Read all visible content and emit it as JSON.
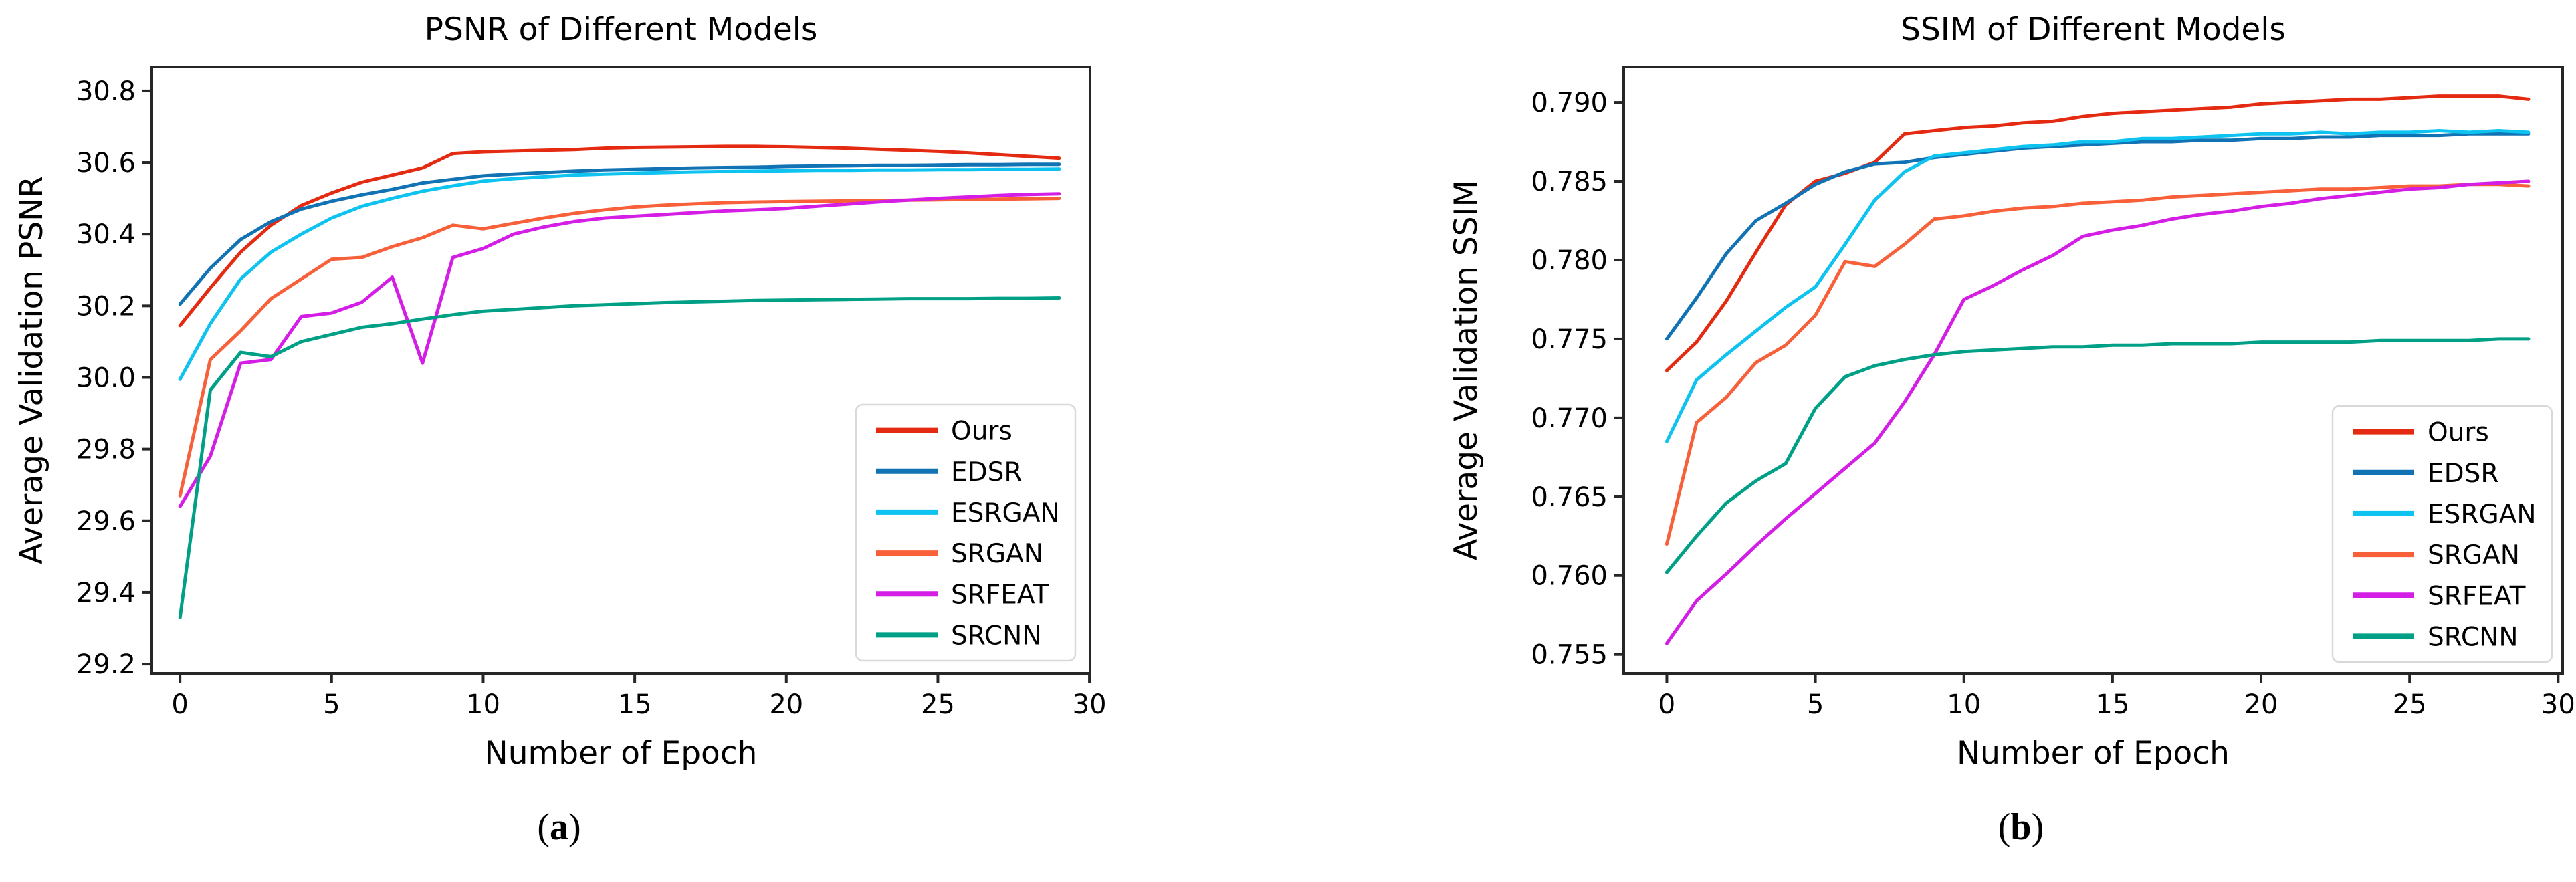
{
  "page": {
    "background": "#ffffff",
    "frame_color": "#262626",
    "text_color": "#000000"
  },
  "panels": [
    {
      "caption": {
        "open": "(",
        "letter": "a",
        "close": ")"
      }
    },
    {
      "caption": {
        "open": "(",
        "letter": "b",
        "close": ")"
      }
    }
  ],
  "chart_data": [
    {
      "id": "psnr",
      "type": "line",
      "title": "PSNR of Different Models",
      "xlabel": "Number of Epoch",
      "ylabel": "Average Validation PSNR",
      "xlim": [
        -0.93,
        30.02
      ],
      "ylim": [
        29.174,
        30.867
      ],
      "grid": false,
      "legend_position": "lower right",
      "legend": [
        "Ours",
        "EDSR",
        "ESRGAN",
        "SRGAN",
        "SRFEAT",
        "SRCNN"
      ],
      "xticks": [
        0,
        5,
        10,
        15,
        20,
        25,
        30
      ],
      "xtick_labels": [
        "0",
        "5",
        "10",
        "15",
        "20",
        "25",
        "30"
      ],
      "yticks": [
        30.8,
        30.6,
        30.4,
        30.2,
        30.0,
        29.8,
        29.6,
        29.4,
        29.2
      ],
      "ytick_labels": [
        "30.8",
        "30.6",
        "30.4",
        "30.2",
        "30.0",
        "29.8",
        "29.6",
        "29.4",
        "29.2"
      ],
      "x": [
        0,
        1,
        2,
        3,
        4,
        5,
        6,
        7,
        8,
        9,
        10,
        11,
        12,
        13,
        14,
        15,
        16,
        17,
        18,
        19,
        20,
        21,
        22,
        23,
        24,
        25,
        26,
        27,
        28,
        29
      ],
      "series": [
        {
          "name": "Ours",
          "color": "#e52a12",
          "values": [
            30.145,
            30.25,
            30.35,
            30.425,
            30.48,
            30.515,
            30.545,
            30.565,
            30.585,
            30.625,
            30.63,
            30.632,
            30.634,
            30.636,
            30.64,
            30.642,
            30.643,
            30.644,
            30.645,
            30.645,
            30.644,
            30.642,
            30.64,
            30.637,
            30.634,
            30.631,
            30.627,
            30.622,
            30.617,
            30.612
          ]
        },
        {
          "name": "EDSR",
          "color": "#1173b4",
          "values": [
            30.205,
            30.305,
            30.385,
            30.435,
            30.47,
            30.492,
            30.51,
            30.525,
            30.543,
            30.553,
            30.563,
            30.568,
            30.572,
            30.576,
            30.579,
            30.581,
            30.583,
            30.585,
            30.586,
            30.587,
            30.589,
            30.59,
            30.591,
            30.592,
            30.592,
            30.593,
            30.594,
            30.594,
            30.595,
            30.595
          ]
        },
        {
          "name": "ESRGAN",
          "color": "#0fc3f0",
          "values": [
            29.995,
            30.15,
            30.275,
            30.35,
            30.4,
            30.445,
            30.478,
            30.5,
            30.52,
            30.535,
            30.548,
            30.555,
            30.56,
            30.565,
            30.568,
            30.57,
            30.572,
            30.574,
            30.575,
            30.576,
            30.577,
            30.578,
            30.578,
            30.579,
            30.579,
            30.58,
            30.58,
            30.581,
            30.581,
            30.582
          ]
        },
        {
          "name": "SRGAN",
          "color": "#f8603a",
          "values": [
            29.67,
            30.05,
            30.13,
            30.22,
            30.275,
            30.33,
            30.335,
            30.365,
            30.39,
            30.425,
            30.415,
            30.43,
            30.445,
            30.458,
            30.468,
            30.476,
            30.481,
            30.485,
            30.488,
            30.49,
            30.491,
            30.492,
            30.493,
            30.494,
            30.495,
            30.496,
            30.497,
            30.498,
            30.499,
            30.5
          ]
        },
        {
          "name": "SRFEAT",
          "color": "#d41ee6",
          "values": [
            29.64,
            29.78,
            30.04,
            30.05,
            30.17,
            30.18,
            30.21,
            30.28,
            30.04,
            30.335,
            30.36,
            30.4,
            30.42,
            30.435,
            30.445,
            30.45,
            30.455,
            30.46,
            30.465,
            30.468,
            30.472,
            30.478,
            30.484,
            30.49,
            30.495,
            30.5,
            30.504,
            30.508,
            30.511,
            30.513
          ]
        },
        {
          "name": "SRCNN",
          "color": "#00a087",
          "values": [
            29.33,
            29.965,
            30.07,
            30.058,
            30.1,
            30.12,
            30.14,
            30.15,
            30.163,
            30.175,
            30.185,
            30.19,
            30.195,
            30.2,
            30.203,
            30.206,
            30.209,
            30.211,
            30.213,
            30.215,
            30.216,
            30.217,
            30.218,
            30.219,
            30.22,
            30.22,
            30.22,
            30.221,
            30.221,
            30.222
          ]
        }
      ]
    },
    {
      "id": "ssim",
      "type": "line",
      "title": "SSIM of Different Models",
      "xlabel": "Number of Epoch",
      "ylabel": "Average Validation SSIM",
      "xlim": [
        -1.45,
        30.15
      ],
      "ylim": [
        0.7538,
        0.79225
      ],
      "grid": false,
      "legend_position": "lower right",
      "legend": [
        "Ours",
        "EDSR",
        "ESRGAN",
        "SRGAN",
        "SRFEAT",
        "SRCNN"
      ],
      "xticks": [
        0,
        5,
        10,
        15,
        20,
        25,
        30
      ],
      "xtick_labels": [
        "0",
        "5",
        "10",
        "15",
        "20",
        "25",
        "30"
      ],
      "yticks": [
        0.79,
        0.785,
        0.78,
        0.775,
        0.77,
        0.765,
        0.76,
        0.755
      ],
      "ytick_labels": [
        "0.790",
        "0.785",
        "0.780",
        "0.775",
        "0.770",
        "0.765",
        "0.760",
        "0.755"
      ],
      "x": [
        0,
        1,
        2,
        3,
        4,
        5,
        6,
        7,
        8,
        9,
        10,
        11,
        12,
        13,
        14,
        15,
        16,
        17,
        18,
        19,
        20,
        21,
        22,
        23,
        24,
        25,
        26,
        27,
        28,
        29
      ],
      "series": [
        {
          "name": "Ours",
          "color": "#e52a12",
          "values": [
            0.773,
            0.7748,
            0.7774,
            0.7805,
            0.7835,
            0.785,
            0.7855,
            0.7862,
            0.788,
            0.7882,
            0.7884,
            0.7885,
            0.7887,
            0.7888,
            0.7891,
            0.7893,
            0.7894,
            0.7895,
            0.7896,
            0.7897,
            0.7899,
            0.79,
            0.7901,
            0.7902,
            0.7902,
            0.7903,
            0.7904,
            0.7904,
            0.7904,
            0.7902
          ]
        },
        {
          "name": "EDSR",
          "color": "#1173b4",
          "values": [
            0.775,
            0.7776,
            0.7804,
            0.7825,
            0.7836,
            0.7848,
            0.7856,
            0.7861,
            0.7862,
            0.7865,
            0.7867,
            0.7869,
            0.7871,
            0.7872,
            0.7873,
            0.7874,
            0.7875,
            0.7875,
            0.7876,
            0.7876,
            0.7877,
            0.7877,
            0.7878,
            0.7878,
            0.7879,
            0.7879,
            0.7879,
            0.788,
            0.788,
            0.788
          ]
        },
        {
          "name": "ESRGAN",
          "color": "#0fc3f0",
          "values": [
            0.7685,
            0.7724,
            0.774,
            0.7755,
            0.777,
            0.7783,
            0.781,
            0.7838,
            0.7856,
            0.7866,
            0.7868,
            0.787,
            0.7872,
            0.7873,
            0.7875,
            0.7875,
            0.7877,
            0.7877,
            0.7878,
            0.7879,
            0.788,
            0.788,
            0.7881,
            0.788,
            0.7881,
            0.7881,
            0.7882,
            0.7881,
            0.7882,
            0.7881
          ]
        },
        {
          "name": "SRGAN",
          "color": "#f8603a",
          "values": [
            0.762,
            0.7697,
            0.7713,
            0.7735,
            0.7746,
            0.7765,
            0.7799,
            0.7796,
            0.781,
            0.7826,
            0.7828,
            0.7831,
            0.7833,
            0.7834,
            0.7836,
            0.7837,
            0.7838,
            0.784,
            0.7841,
            0.7842,
            0.7843,
            0.7844,
            0.7845,
            0.7845,
            0.7846,
            0.7847,
            0.7847,
            0.7848,
            0.7848,
            0.7847
          ]
        },
        {
          "name": "SRFEAT",
          "color": "#d41ee6",
          "values": [
            0.7557,
            0.7584,
            0.7601,
            0.7619,
            0.7636,
            0.7652,
            0.7668,
            0.7684,
            0.771,
            0.774,
            0.7775,
            0.7784,
            0.7794,
            0.7803,
            0.7815,
            0.7819,
            0.7822,
            0.7826,
            0.7829,
            0.7831,
            0.7834,
            0.7836,
            0.7839,
            0.7841,
            0.7843,
            0.7845,
            0.7846,
            0.7848,
            0.7849,
            0.785
          ]
        },
        {
          "name": "SRCNN",
          "color": "#00a087",
          "values": [
            0.7602,
            0.7625,
            0.7646,
            0.766,
            0.7671,
            0.7706,
            0.7726,
            0.7733,
            0.7737,
            0.774,
            0.7742,
            0.7743,
            0.7744,
            0.7745,
            0.7745,
            0.7746,
            0.7746,
            0.7747,
            0.7747,
            0.7747,
            0.7748,
            0.7748,
            0.7748,
            0.7748,
            0.7749,
            0.7749,
            0.7749,
            0.7749,
            0.775,
            0.775
          ]
        }
      ]
    }
  ]
}
